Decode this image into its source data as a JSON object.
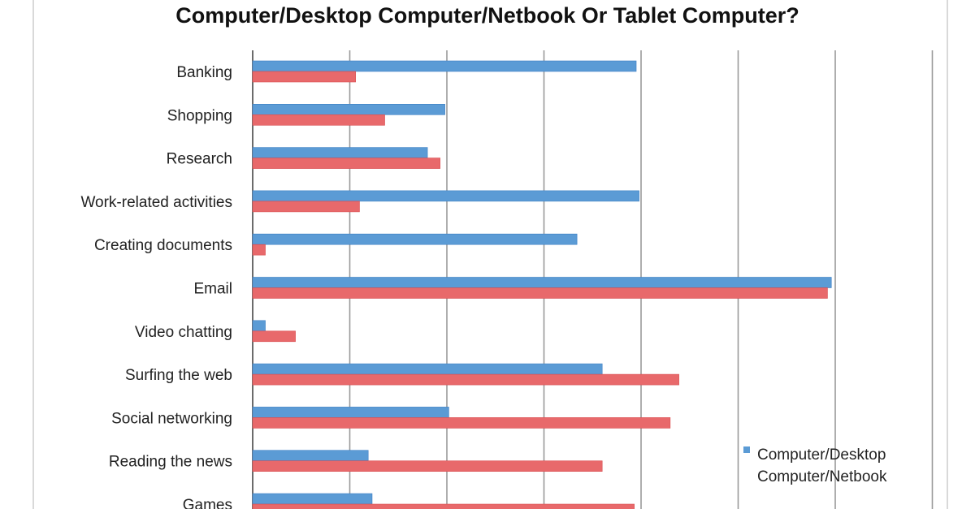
{
  "chart_data": {
    "type": "bar",
    "orientation": "horizontal",
    "title": "Computer/Desktop Computer/Netbook Or Tablet Computer?",
    "xlabel": "",
    "ylabel": "",
    "xlim": [
      0,
      60
    ],
    "grid": true,
    "legend_position": "bottom-right",
    "categories": [
      "Banking",
      "Shopping",
      "Research",
      "Work-related activities",
      "Creating documents",
      "Email",
      "Video chatting",
      "Surfing the web",
      "Social networking",
      "Reading the news",
      "Games"
    ],
    "series": [
      {
        "name": "Computer/Desktop Computer/Netbook",
        "color": "#5b9bd5",
        "values": [
          39.5,
          19.8,
          18.0,
          39.8,
          33.4,
          59.6,
          1.3,
          36.0,
          20.2,
          11.9,
          12.3
        ]
      },
      {
        "name": "",
        "color": "#e8696b",
        "values": [
          10.6,
          13.6,
          19.3,
          11.0,
          1.3,
          59.2,
          4.4,
          43.9,
          43.0,
          36.0,
          39.3
        ]
      }
    ]
  }
}
